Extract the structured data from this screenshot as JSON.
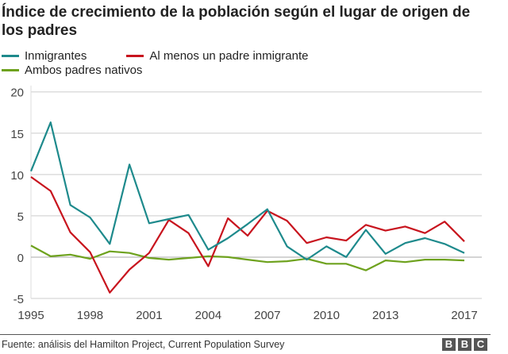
{
  "chart_data": {
    "type": "line",
    "title": "Índice de crecimiento de la población según el lugar de origen de los padres",
    "xlabel": "",
    "ylabel": "",
    "x": [
      1995,
      1996,
      1997,
      1998,
      1999,
      2000,
      2001,
      2002,
      2003,
      2004,
      2005,
      2006,
      2007,
      2008,
      2009,
      2010,
      2011,
      2012,
      2013,
      2014,
      2015,
      2016,
      2017
    ],
    "xticks": [
      "1995",
      "1998",
      "2001",
      "2004",
      "2007",
      "2010",
      "2013",
      "2017"
    ],
    "yticks": [
      "20",
      "15",
      "10",
      "5",
      "0",
      "-5"
    ],
    "ylim": [
      -5,
      20
    ],
    "xlim": [
      1995,
      2017
    ],
    "grid": true,
    "legend_position": "top-left",
    "series": [
      {
        "name": "Inmigrantes",
        "color": "#1e8a8c",
        "values": [
          10.4,
          16.3,
          6.3,
          4.8,
          1.6,
          11.2,
          4.1,
          4.6,
          5.1,
          0.9,
          2.3,
          4.0,
          5.8,
          1.3,
          -0.3,
          1.3,
          0.0,
          3.3,
          0.4,
          1.7,
          2.3,
          1.6,
          0.5
        ]
      },
      {
        "name": "Al menos un padre inmigrante",
        "color": "#c8141e",
        "values": [
          9.7,
          8.0,
          3.0,
          0.6,
          -4.3,
          -1.5,
          0.5,
          4.5,
          2.9,
          -1.1,
          4.7,
          2.6,
          5.6,
          4.4,
          1.7,
          2.4,
          2.0,
          3.9,
          3.2,
          3.7,
          2.9,
          4.3,
          1.9
        ]
      },
      {
        "name": "Ambos padres nativos",
        "color": "#6ea21e",
        "values": [
          1.4,
          0.1,
          0.3,
          -0.2,
          0.7,
          0.5,
          -0.1,
          -0.3,
          -0.1,
          0.1,
          0.0,
          -0.3,
          -0.6,
          -0.5,
          -0.2,
          -0.8,
          -0.8,
          -1.6,
          -0.4,
          -0.6,
          -0.3,
          -0.3,
          -0.4
        ]
      }
    ]
  },
  "footer": {
    "source": "Fuente: análisis del Hamilton Project, Current Population Survey",
    "logo": [
      "B",
      "B",
      "C"
    ]
  }
}
